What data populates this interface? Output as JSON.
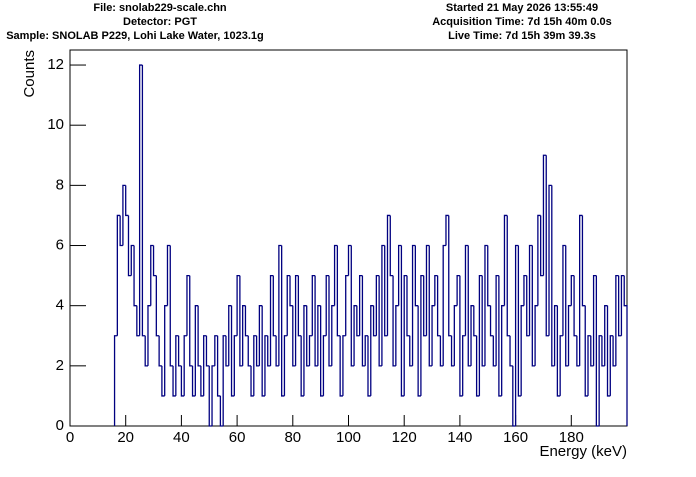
{
  "chart_data": {
    "type": "histogram",
    "info_left": [
      "File: snolab229-scale.chn",
      "Detector: PGT",
      "Sample: SNOLAB P229, Lohi Lake Water, 1023.1g"
    ],
    "info_right": [
      "Started 21 May 2026 13:55:49",
      "Acquisition Time: 7d 15h 40m 0.0s",
      "Live Time: 7d 15h 39m 39.3s"
    ],
    "x_label": "Energy (keV)",
    "y_label": "Counts",
    "color": "#000080",
    "xlim": [
      0,
      200
    ],
    "ylim": [
      0,
      12.5
    ],
    "xticks": [
      0,
      20,
      40,
      60,
      80,
      100,
      120,
      140,
      160,
      180
    ],
    "yticks": [
      0,
      2,
      4,
      6,
      8,
      10,
      12
    ],
    "bins": [
      16,
      17,
      18,
      19,
      20,
      21,
      22,
      23,
      24,
      25,
      26,
      27,
      28,
      29,
      30,
      31,
      32,
      33,
      34,
      35,
      36,
      37,
      38,
      39,
      40,
      41,
      42,
      43,
      44,
      45,
      46,
      47,
      48,
      49,
      50,
      51,
      52,
      53,
      54,
      55,
      56,
      57,
      58,
      59,
      60,
      61,
      62,
      63,
      64,
      65,
      66,
      67,
      68,
      69,
      70,
      71,
      72,
      73,
      74,
      75,
      76,
      77,
      78,
      79,
      80,
      81,
      82,
      83,
      84,
      85,
      86,
      87,
      88,
      89,
      90,
      91,
      92,
      93,
      94,
      95,
      96,
      97,
      98,
      99,
      100,
      101,
      102,
      103,
      104,
      105,
      106,
      107,
      108,
      109,
      110,
      111,
      112,
      113,
      114,
      115,
      116,
      117,
      118,
      119,
      120,
      121,
      122,
      123,
      124,
      125,
      126,
      127,
      128,
      129,
      130,
      131,
      132,
      133,
      134,
      135,
      136,
      137,
      138,
      139,
      140,
      141,
      142,
      143,
      144,
      145,
      146,
      147,
      148,
      149,
      150,
      151,
      152,
      153,
      154,
      155,
      156,
      157,
      158,
      159,
      160,
      161,
      162,
      163,
      164,
      165,
      166,
      167,
      168,
      169,
      170,
      171,
      172,
      173,
      174,
      175,
      176,
      177,
      178,
      179,
      180,
      181,
      182,
      183,
      184,
      185,
      186,
      187,
      188,
      189,
      190,
      191,
      192,
      193,
      194,
      195,
      196,
      197,
      198,
      199,
      200
    ],
    "values": [
      3,
      7,
      6,
      8,
      7,
      5,
      6,
      4,
      3,
      12,
      3,
      2,
      4,
      6,
      5,
      3,
      2,
      1,
      4,
      6,
      2,
      1,
      3,
      2,
      1,
      3,
      5,
      2,
      1,
      4,
      2,
      1,
      3,
      2,
      0,
      2,
      3,
      1,
      0,
      3,
      2,
      4,
      1,
      3,
      5,
      2,
      4,
      3,
      2,
      1,
      3,
      2,
      4,
      1,
      3,
      2,
      5,
      3,
      2,
      6,
      1,
      3,
      5,
      4,
      2,
      5,
      3,
      1,
      4,
      2,
      3,
      5,
      2,
      4,
      1,
      3,
      5,
      2,
      4,
      6,
      3,
      1,
      3,
      5,
      6,
      2,
      4,
      3,
      5,
      2,
      3,
      1,
      4,
      3,
      5,
      2,
      6,
      3,
      7,
      5,
      2,
      4,
      6,
      1,
      5,
      3,
      2,
      6,
      4,
      1,
      5,
      3,
      6,
      2,
      4,
      5,
      3,
      2,
      6,
      7,
      3,
      2,
      4,
      5,
      1,
      3,
      6,
      2,
      4,
      3,
      1,
      5,
      2,
      6,
      4,
      3,
      2,
      5,
      1,
      4,
      7,
      3,
      2,
      0,
      6,
      1,
      4,
      5,
      3,
      6,
      2,
      4,
      7,
      5,
      9,
      3,
      8,
      2,
      4,
      1,
      3,
      6,
      2,
      4,
      5,
      3,
      2,
      7,
      4,
      1,
      3,
      2,
      5,
      0,
      3,
      2,
      4,
      1,
      3,
      2,
      5,
      3,
      5,
      4
    ]
  }
}
